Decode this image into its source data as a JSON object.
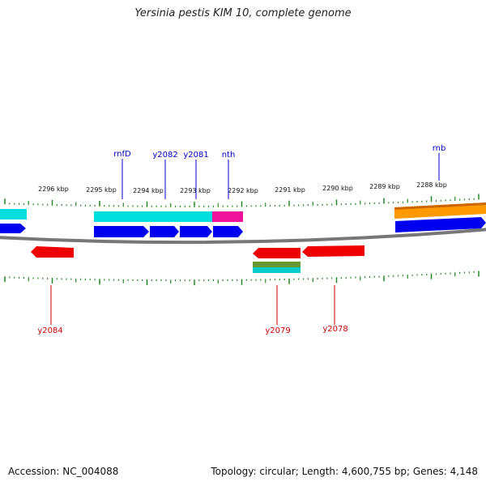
{
  "title": "Yersinia pestis KIM 10, complete genome",
  "footer": {
    "accession": "Accession: NC_004088",
    "summary": "Topology: circular; Length: 4,600,755 bp; Genes: 4,148"
  },
  "scale_labels": [
    "2296 kbp",
    "2295 kbp",
    "2294 kbp",
    "2293 kbp",
    "2292 kbp",
    "2291 kbp",
    "2290 kbp",
    "2289 kbp",
    "2288 kbp"
  ],
  "top_gene_labels": [
    "rnfD",
    "y2082",
    "y2081",
    "nth",
    "rnb"
  ],
  "bottom_gene_labels": [
    "y2084",
    "y2079",
    "y2078"
  ],
  "colors": {
    "forward_cds": "#0000ee",
    "reverse_cds": "#ee0000",
    "cog_cyan": "#00e0e0",
    "cog_magenta": "#ee1199",
    "cog_orange": "#ff9900",
    "cog_olive": "#669933",
    "backbone": "#777777",
    "tick": "#228822",
    "top_label": "#0000cc",
    "bottom_label": "#cc0000"
  }
}
